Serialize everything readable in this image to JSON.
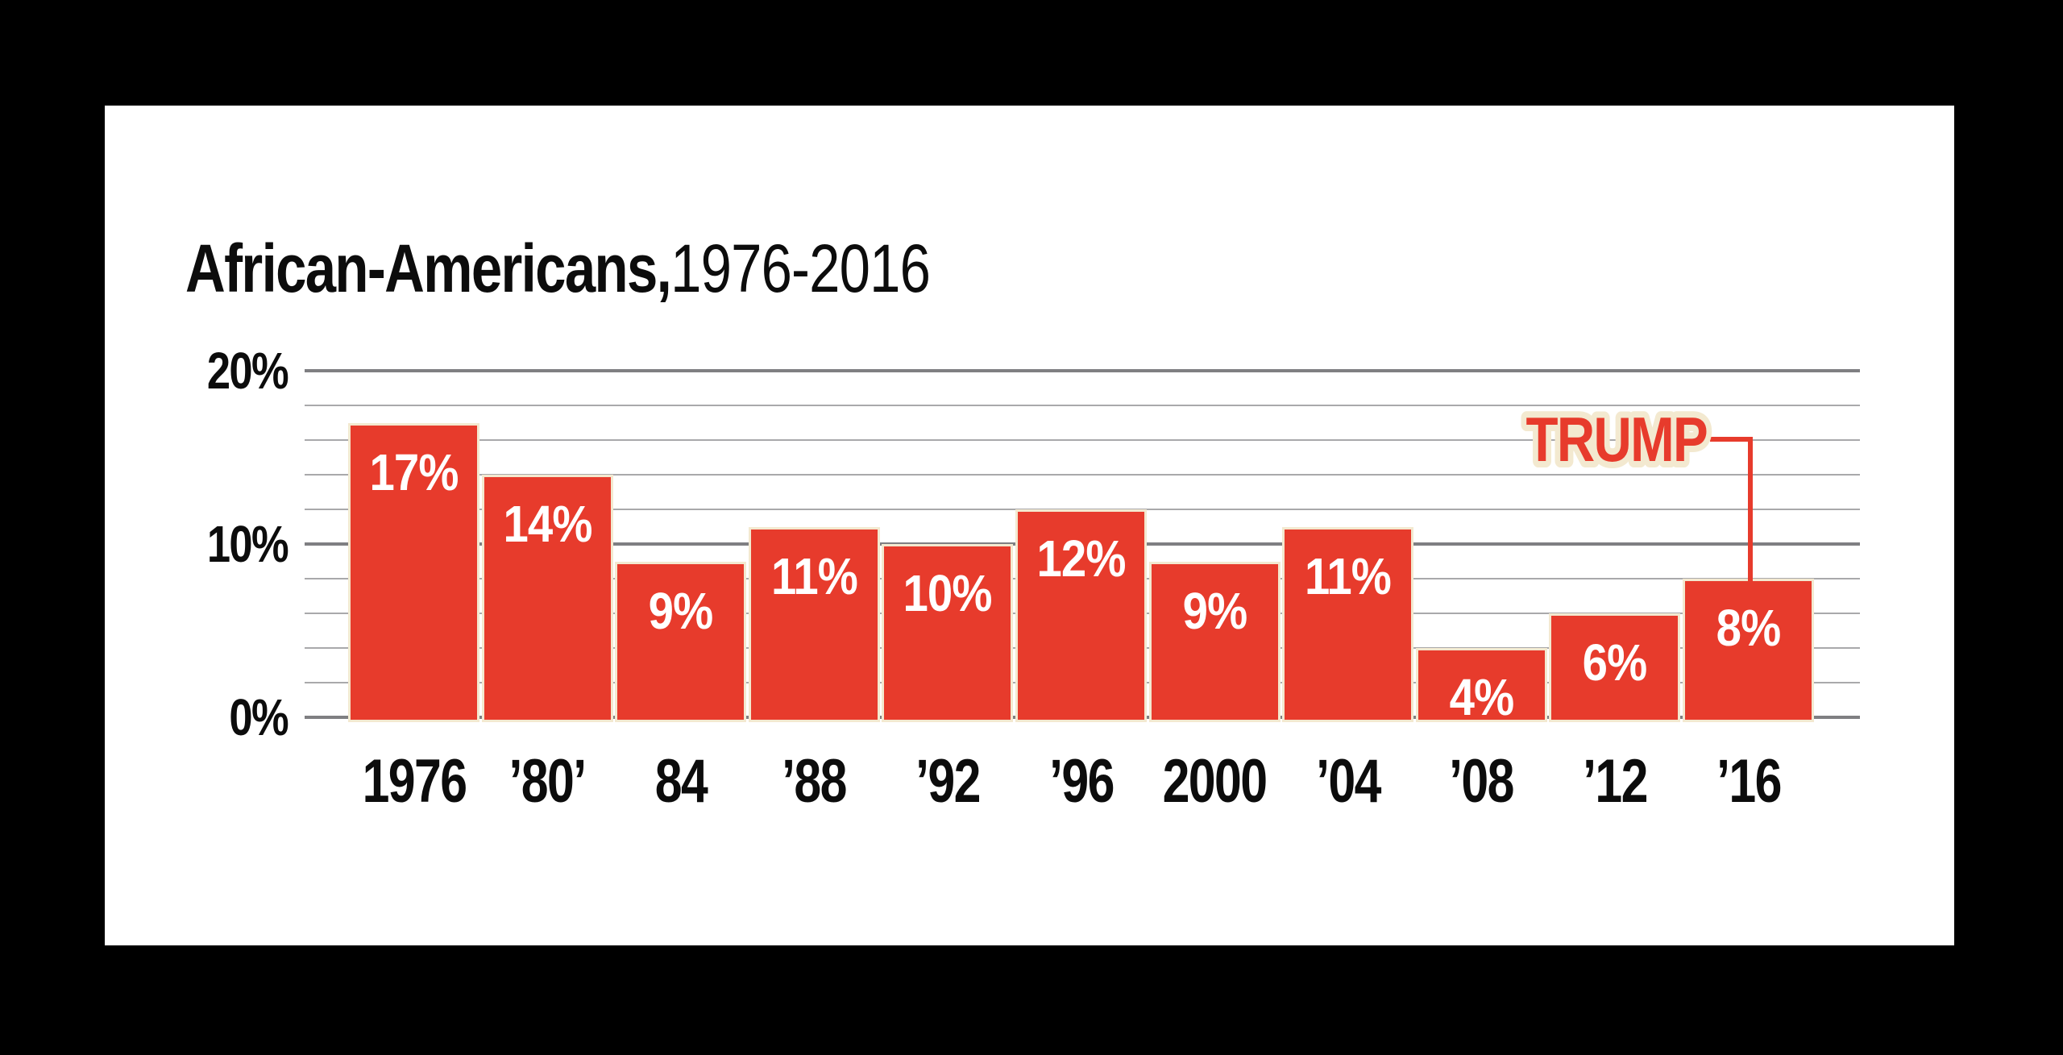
{
  "title": {
    "bold": "African-Americans,",
    "range": "1976-2016"
  },
  "chart_data": {
    "type": "bar",
    "title": "African-Americans, 1976-2016",
    "categories": [
      "1976",
      "’80’",
      "84",
      "’88",
      "’92",
      "’96",
      "2000",
      "’04",
      "’08",
      "’12",
      "’16"
    ],
    "values": [
      17,
      14,
      9,
      11,
      10,
      12,
      9,
      11,
      4,
      6,
      8
    ],
    "bar_labels": [
      "17%",
      "14%",
      "9%",
      "11%",
      "10%",
      "12%",
      "9%",
      "11%",
      "4%",
      "6%",
      "8%"
    ],
    "xlabel": "",
    "ylabel": "",
    "ylim": [
      0,
      20
    ],
    "yticks": [
      {
        "value": 20,
        "label": "20%"
      },
      {
        "value": 10,
        "label": "10%"
      },
      {
        "value": 0,
        "label": "0%"
      }
    ],
    "grid": "horizontal, minor every 2%, major every 10%",
    "legend_position": "none",
    "annotation": {
      "text": "TRUMP",
      "target_category": "’16",
      "target_value": 8
    }
  },
  "colors": {
    "background": "#000000",
    "card": "#ffffff",
    "bar_red": "#e73b2c",
    "bar_outline_cream": "#f3e9d0",
    "grid_minor": "#a9a9ab",
    "grid_major": "#7f7f82",
    "text": "#0c0c0c",
    "bar_label_text": "#ffffff"
  }
}
